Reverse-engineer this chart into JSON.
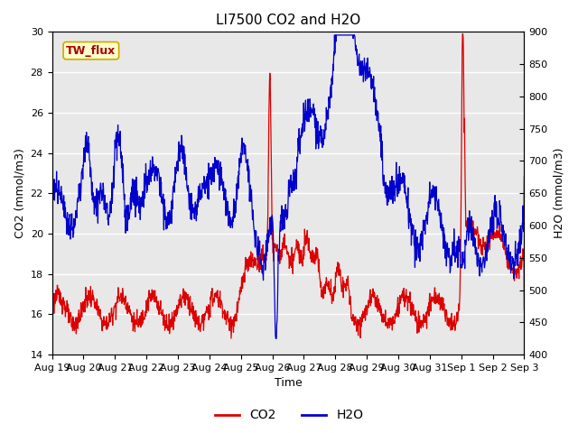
{
  "title": "LI7500 CO2 and H2O",
  "xlabel": "Time",
  "ylabel_left": "CO2 (mmol/m3)",
  "ylabel_right": "H2O (mmol/m3)",
  "ylim_left": [
    14,
    30
  ],
  "ylim_right": [
    400,
    900
  ],
  "yticks_left": [
    14,
    16,
    18,
    20,
    22,
    24,
    26,
    28,
    30
  ],
  "yticks_right": [
    400,
    450,
    500,
    550,
    600,
    650,
    700,
    750,
    800,
    850,
    900
  ],
  "xtick_labels": [
    "Aug 19",
    "Aug 20",
    "Aug 21",
    "Aug 22",
    "Aug 23",
    "Aug 24",
    "Aug 25",
    "Aug 26",
    "Aug 27",
    "Aug 28",
    "Aug 29",
    "Aug 30",
    "Aug 31",
    "Sep 1",
    "Sep 2",
    "Sep 3"
  ],
  "legend_label_co2": "CO2",
  "legend_label_h2o": "H2O",
  "color_co2": "#dd0000",
  "color_h2o": "#0000cc",
  "annotation_text": "TW_flux",
  "annotation_color": "#aa0000",
  "annotation_bg": "#ffffcc",
  "annotation_border": "#ccaa00",
  "background_color": "#e8e8e8",
  "title_fontsize": 11,
  "axis_fontsize": 9,
  "tick_fontsize": 8,
  "linewidth": 0.9,
  "figwidth": 6.4,
  "figheight": 4.8,
  "dpi": 100
}
